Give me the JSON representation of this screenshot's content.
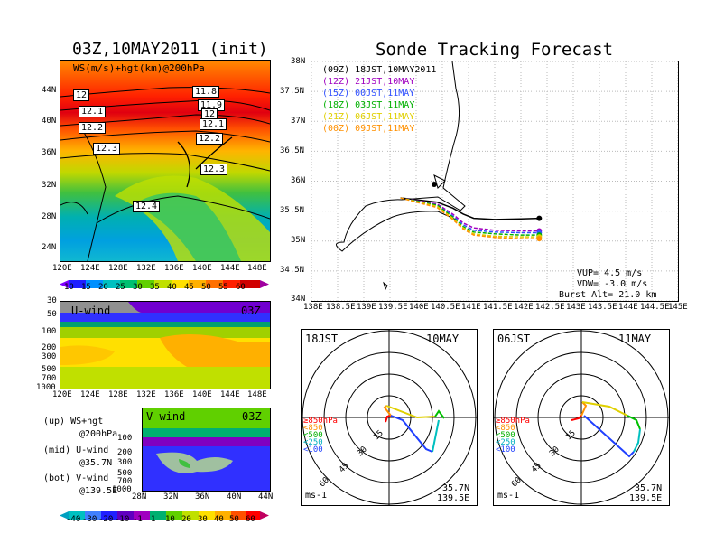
{
  "left": {
    "title": "03Z,10MAY2011 (init)",
    "top_label": "WS(m/s)+hgt(km)@200hPa",
    "contour_labels": [
      "12",
      "12.1",
      "12.2",
      "12.3",
      "12.4",
      "11.8",
      "11.9",
      "12",
      "12.1",
      "12.2",
      "12.3"
    ],
    "lat_ticks": [
      "44N",
      "40N",
      "36N",
      "32N",
      "28N",
      "24N"
    ],
    "lon_ticks": [
      "120E",
      "124E",
      "128E",
      "132E",
      "136E",
      "140E",
      "144E",
      "148E"
    ],
    "colorbar1": [
      "10",
      "15",
      "20",
      "25",
      "30",
      "35",
      "40",
      "45",
      "50",
      "55",
      "60"
    ],
    "uwind_label": "U-wind",
    "uwind_time": "03Z",
    "pres_ticks": [
      "30",
      "50",
      "100",
      "200",
      "300",
      "500",
      "700",
      "1000"
    ],
    "vwind_label": "V-wind",
    "vwind_time": "03Z",
    "vwind_pres_ticks": [
      "100",
      "200",
      "300",
      "500",
      "700",
      "1000"
    ],
    "vwind_lat_ticks": [
      "28N",
      "32N",
      "36N",
      "40N",
      "44N"
    ],
    "colorbar2": [
      "-40",
      "-30",
      "-20",
      "-10",
      "-1",
      "1",
      "10",
      "20",
      "30",
      "40",
      "50",
      "60"
    ],
    "notes": [
      "(up) WS+hgt",
      "@200hPa",
      "(mid) U-wind",
      "@35.7N",
      "(bot) V-wind",
      "@139.5E"
    ]
  },
  "right": {
    "title": "Sonde Tracking Forecast",
    "legend": [
      {
        "text": "(09Z) 18JST,10MAY2011",
        "color": "#000000"
      },
      {
        "text": "(12Z) 21JST,10MAY",
        "color": "#a000c0"
      },
      {
        "text": "(15Z) 00JST,11MAY",
        "color": "#3050ff"
      },
      {
        "text": "(18Z) 03JST,11MAY",
        "color": "#00b000"
      },
      {
        "text": "(21Z) 06JST,11MAY",
        "color": "#e0d000"
      },
      {
        "text": "(00Z) 09JST,11MAY",
        "color": "#ff9000"
      }
    ],
    "lat_ticks": [
      "38N",
      "37.5N",
      "37N",
      "36.5N",
      "36N",
      "35.5N",
      "35N",
      "34.5N",
      "34N"
    ],
    "lon_ticks": [
      "138E",
      "138.5E",
      "139E",
      "139.5E",
      "140E",
      "140.5E",
      "141E",
      "141.5E",
      "142E",
      "142.5E",
      "143E",
      "143.5E",
      "144E",
      "144.5E",
      "145E"
    ],
    "info": [
      "VUP= 4.5 m/s",
      "VDW= -3.0 m/s",
      "Burst Alt= 21.0 km"
    ]
  },
  "chart_data": [
    {
      "type": "heatmap",
      "title": "03Z,10MAY2011 (init)",
      "subtitle": "WS(m/s)+hgt(km)@200hPa",
      "x_range": [
        "120E",
        "150E"
      ],
      "y_range": [
        "22N",
        "48N"
      ],
      "colorbar": [
        10,
        15,
        20,
        25,
        30,
        35,
        40,
        45,
        50,
        55,
        60
      ],
      "contours": [
        12,
        12.1,
        12.2,
        12.3,
        12.4,
        11.8,
        11.9
      ]
    },
    {
      "type": "heatmap",
      "title": "U-wind",
      "subtitle": "03Z",
      "y_ticks_hPa": [
        30,
        50,
        100,
        200,
        300,
        500,
        700,
        1000
      ],
      "x_range": [
        "120E",
        "150E"
      ]
    },
    {
      "type": "heatmap",
      "title": "V-wind",
      "subtitle": "03Z",
      "y_ticks_hPa": [
        100,
        200,
        300,
        500,
        700,
        1000
      ],
      "x_range": [
        "28N",
        "44N"
      ],
      "colorbar": [
        -40,
        -30,
        -20,
        -10,
        -1,
        1,
        10,
        20,
        30,
        40,
        50,
        60
      ]
    },
    {
      "type": "line",
      "title": "Sonde Tracking Forecast",
      "xlim": [
        138,
        145
      ],
      "ylim": [
        34,
        38
      ],
      "series": [
        {
          "name": "(09Z) 18JST,10MAY2011",
          "x": [
            139.7,
            140.4,
            140.7,
            140.9,
            141.1,
            141.5,
            142.0,
            142.35
          ],
          "y": [
            35.72,
            35.65,
            35.55,
            35.45,
            35.38,
            35.36,
            35.37,
            35.38
          ]
        },
        {
          "name": "(12Z) 21JST,10MAY",
          "x": [
            139.7,
            140.4,
            140.7,
            140.9,
            141.1,
            141.5,
            142.0,
            142.35
          ],
          "y": [
            35.72,
            35.62,
            35.45,
            35.3,
            35.22,
            35.18,
            35.17,
            35.17
          ]
        },
        {
          "name": "(15Z) 00JST,11MAY",
          "x": [
            139.7,
            140.4,
            140.7,
            140.9,
            141.1,
            141.5,
            142.0,
            142.35
          ],
          "y": [
            35.72,
            35.6,
            35.42,
            35.27,
            35.18,
            35.15,
            35.14,
            35.14
          ]
        },
        {
          "name": "(18Z) 03JST,11MAY",
          "x": [
            139.7,
            140.4,
            140.7,
            140.9,
            141.1,
            141.5,
            142.0,
            142.35
          ],
          "y": [
            35.72,
            35.6,
            35.4,
            35.24,
            35.15,
            35.12,
            35.1,
            35.1
          ]
        },
        {
          "name": "(21Z) 06JST,11MAY",
          "x": [
            139.7,
            140.4,
            140.7,
            140.9,
            141.1,
            141.5,
            142.0,
            142.35
          ],
          "y": [
            35.72,
            35.58,
            35.38,
            35.22,
            35.12,
            35.08,
            35.07,
            35.07
          ]
        },
        {
          "name": "(00Z) 09JST,11MAY",
          "x": [
            139.7,
            140.4,
            140.7,
            140.9,
            141.1,
            141.5,
            142.0,
            142.35
          ],
          "y": [
            35.72,
            35.56,
            35.36,
            35.2,
            35.1,
            35.06,
            35.04,
            35.04
          ]
        }
      ]
    }
  ],
  "polar": [
    {
      "time": "18JST",
      "date": "10MAY",
      "levels": [
        "≥850hPa",
        "<850",
        "<500",
        "<250",
        "<100"
      ],
      "rings": [
        "15",
        "30",
        "45",
        "60"
      ],
      "unit": "ms-1",
      "loc1": "35.7N",
      "loc2": "139.5E"
    },
    {
      "time": "06JST",
      "date": "11MAY",
      "levels": [
        "≥850hPa",
        "<850",
        "<500",
        "<250",
        "<100"
      ],
      "rings": [
        "15",
        "30",
        "45",
        "60"
      ],
      "unit": "ms-1",
      "loc1": "35.7N",
      "loc2": "139.5E"
    }
  ]
}
